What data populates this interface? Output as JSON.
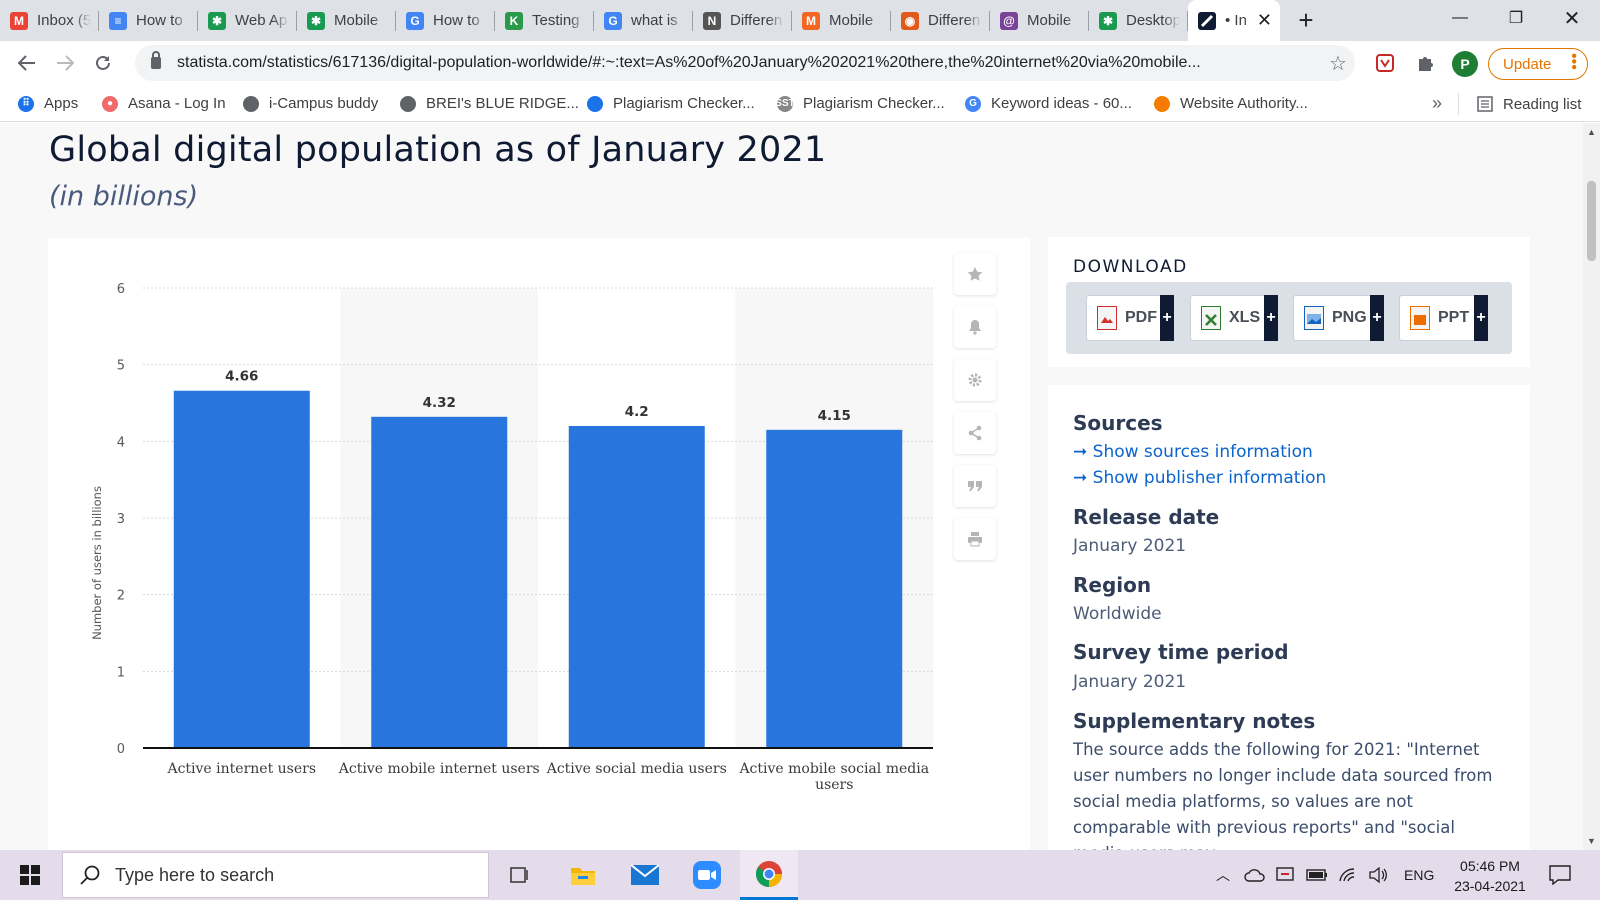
{
  "browser": {
    "tabs": [
      {
        "title": "Inbox (5",
        "icon": "gmail-icon",
        "color": "#ea4335",
        "glyph": "M"
      },
      {
        "title": "How to",
        "icon": "docs-icon",
        "color": "#4285f4",
        "glyph": "≡"
      },
      {
        "title": "Web Ap",
        "icon": "gear-icon",
        "color": "#1a9a50",
        "glyph": "✱"
      },
      {
        "title": "Mobile",
        "icon": "gear-icon",
        "color": "#1a9a50",
        "glyph": "✱"
      },
      {
        "title": "How to",
        "icon": "google-icon",
        "color": "#4285f4",
        "glyph": "G"
      },
      {
        "title": "Testing",
        "icon": "k-logo-icon",
        "color": "#2a9a4a",
        "glyph": "K"
      },
      {
        "title": "what is",
        "icon": "google-icon",
        "color": "#4285f4",
        "glyph": "G"
      },
      {
        "title": "Differen",
        "icon": "nex-icon",
        "color": "#555555",
        "glyph": "N"
      },
      {
        "title": "Mobile",
        "icon": "m-logo-icon",
        "color": "#f26522",
        "glyph": "M"
      },
      {
        "title": "Differen",
        "icon": "circle-logo-icon",
        "color": "#e05a1b",
        "glyph": "◉"
      },
      {
        "title": "Mobile",
        "icon": "at-logo-icon",
        "color": "#7b4397",
        "glyph": "@"
      },
      {
        "title": "Desktop",
        "icon": "gear-icon",
        "color": "#1a9a50",
        "glyph": "✱"
      }
    ],
    "active_tab": {
      "title": "• In",
      "icon": "statista-icon",
      "close": "✕"
    },
    "new_tab": "+",
    "window_controls": {
      "minimize": "—",
      "restore": "❐",
      "close": "✕"
    },
    "url": "statista.com/statistics/617136/digital-population-worldwide/#:~:text=As%20of%20January%202021%20there,the%20internet%20via%20mobile...",
    "profile_initial": "P",
    "update_label": "Update",
    "bookmarks": [
      {
        "label": "Apps",
        "icon": "apps-grid-icon"
      },
      {
        "label": "Asana - Log In",
        "icon": "asana-icon"
      },
      {
        "label": "i-Campus buddy",
        "icon": "globe-icon"
      },
      {
        "label": "BREI's BLUE RIDGE...",
        "icon": "globe-icon"
      },
      {
        "label": "Plagiarism Checker...",
        "icon": "magnifier-logo-icon"
      },
      {
        "label": "Plagiarism Checker...",
        "icon": "sst-icon"
      },
      {
        "label": "Keyword ideas - 60...",
        "icon": "google-icon"
      },
      {
        "label": "Website Authority...",
        "icon": "orange-logo-icon"
      }
    ],
    "bookmarks_overflow": "»",
    "reading_list": "Reading list"
  },
  "page": {
    "title": "Global digital population as of January 2021",
    "subtitle": "(in billions)",
    "download": {
      "heading": "DOWNLOAD",
      "formats": [
        {
          "label": "PDF",
          "color": "#d32f2f"
        },
        {
          "label": "XLS",
          "color": "#2e7d32"
        },
        {
          "label": "PNG",
          "color": "#1565c0"
        },
        {
          "label": "PPT",
          "color": "#ef6c00"
        }
      ],
      "plus": "+"
    },
    "info": {
      "sources_heading": "Sources",
      "show_sources": "➞ Show sources information",
      "show_publisher": "➞ Show publisher information",
      "release_heading": "Release date",
      "release_value": "January 2021",
      "region_heading": "Region",
      "region_value": "Worldwide",
      "survey_heading": "Survey time period",
      "survey_value": "January 2021",
      "notes_heading": "Supplementary notes",
      "notes_text": "The source adds the following for 2021: \"Internet user numbers no longer include data sourced from social media platforms, so values are not comparable with previous reports\" and \"social media users may"
    },
    "tools": [
      "star-icon",
      "bell-icon",
      "gear-icon",
      "share-icon",
      "quote-icon",
      "print-icon"
    ]
  },
  "chart_data": {
    "type": "bar",
    "categories": [
      "Active internet users",
      "Active mobile internet users",
      "Active social media users",
      "Active mobile social media users"
    ],
    "values": [
      4.66,
      4.32,
      4.2,
      4.15
    ],
    "value_labels": [
      "4.66",
      "4.32",
      "4.2",
      "4.15"
    ],
    "title": "Global digital population as of January 2021",
    "subtitle": "(in billions)",
    "xlabel": "",
    "ylabel": "Number of users in billions",
    "ylim": [
      0,
      6
    ],
    "yticks": [
      0,
      1,
      2,
      3,
      4,
      5,
      6
    ],
    "grid": true,
    "bar_color": "#2876dd"
  },
  "taskbar": {
    "search_placeholder": "Type here to search",
    "language": "ENG",
    "time": "05:46 PM",
    "date": "23-04-2021"
  }
}
